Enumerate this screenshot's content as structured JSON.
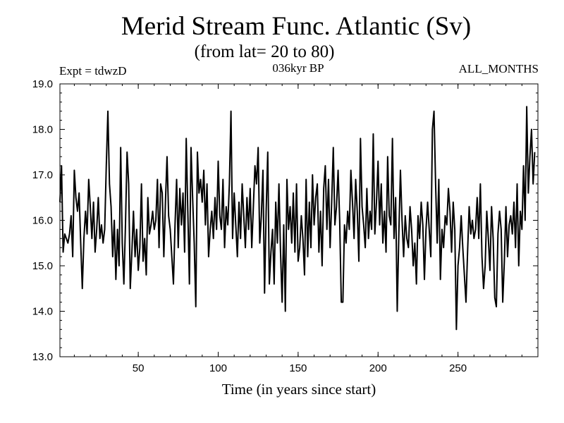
{
  "chart_data": {
    "type": "line",
    "title": "Merid Stream Func. Atlantic (Sv)",
    "subtitle": "(from lat= 20 to 80)",
    "period_label": "036kyr BP",
    "experiment_label": "Expt = tdwzD",
    "months_label": "ALL_MONTHS",
    "xlabel": "Time (in years since start)",
    "ylabel": "",
    "xlim": [
      1,
      300
    ],
    "ylim": [
      13.0,
      19.0
    ],
    "x_ticks": [
      50,
      100,
      150,
      200,
      250
    ],
    "y_ticks": [
      13.0,
      14.0,
      15.0,
      16.0,
      17.0,
      18.0,
      19.0
    ],
    "grid": false,
    "x_start": 1,
    "x_step": 1,
    "series": [
      {
        "values": [
          16.4,
          17.2,
          15.3,
          15.7,
          15.6,
          15.5,
          15.7,
          16.1,
          15.2,
          17.1,
          16.5,
          16.2,
          16.6,
          15.5,
          14.5,
          15.6,
          16.2,
          15.7,
          16.9,
          16.3,
          15.6,
          16.4,
          15.3,
          15.8,
          16.5,
          15.6,
          15.9,
          15.5,
          15.8,
          17.2,
          18.4,
          16.8,
          16.3,
          15.2,
          16.0,
          14.7,
          15.8,
          15.0,
          17.6,
          15.5,
          14.6,
          15.9,
          17.5,
          16.8,
          14.5,
          15.3,
          16.2,
          15.2,
          15.8,
          14.9,
          15.4,
          16.8,
          15.1,
          15.6,
          14.8,
          16.5,
          15.7,
          15.9,
          16.2,
          15.8,
          16.0,
          16.9,
          15.4,
          16.8,
          16.6,
          15.2,
          16.4,
          17.4,
          16.1,
          15.8,
          15.2,
          14.6,
          15.9,
          16.9,
          15.4,
          16.7,
          15.9,
          16.6,
          15.3,
          17.8,
          16.2,
          14.6,
          17.6,
          16.5,
          15.5,
          14.1,
          17.5,
          16.6,
          16.9,
          16.4,
          17.1,
          15.9,
          16.8,
          15.2,
          15.8,
          16.2,
          15.6,
          16.5,
          15.8,
          17.3,
          16.1,
          15.8,
          16.9,
          15.4,
          16.3,
          15.9,
          16.8,
          18.4,
          15.6,
          16.6,
          15.9,
          15.2,
          16.4,
          15.6,
          16.8,
          16.1,
          15.4,
          16.5,
          15.8,
          16.7,
          15.4,
          16.3,
          17.2,
          16.8,
          17.6,
          15.5,
          16.1,
          17.1,
          14.4,
          16.2,
          17.5,
          14.6,
          15.3,
          15.8,
          14.6,
          16.4,
          15.5,
          16.8,
          15.3,
          14.2,
          15.9,
          14.0,
          16.9,
          15.8,
          16.3,
          15.5,
          16.6,
          15.3,
          16.8,
          15.1,
          15.4,
          16.1,
          15.6,
          14.8,
          16.9,
          15.2,
          16.4,
          15.4,
          17.0,
          15.9,
          16.5,
          16.8,
          15.3,
          16.2,
          15.0,
          16.7,
          17.2,
          15.8,
          16.9,
          15.4,
          16.4,
          17.6,
          15.9,
          16.3,
          17.1,
          16.0,
          14.2,
          14.2,
          15.9,
          15.5,
          16.2,
          15.8,
          17.1,
          16.4,
          15.6,
          16.9,
          16.2,
          15.1,
          17.8,
          16.3,
          15.9,
          15.4,
          16.7,
          15.6,
          16.2,
          15.8,
          17.9,
          15.7,
          16.4,
          17.3,
          15.9,
          16.8,
          15.5,
          16.2,
          15.3,
          17.4,
          16.1,
          15.9,
          17.8,
          15.6,
          16.5,
          14.0,
          15.7,
          17.1,
          16.0,
          15.2,
          16.1,
          15.6,
          15.4,
          16.3,
          15.8,
          15.0,
          15.5,
          14.6,
          16.1,
          15.6,
          16.4,
          15.9,
          14.7,
          15.8,
          16.4,
          15.8,
          15.2,
          18.0,
          18.4,
          16.8,
          15.5,
          16.9,
          14.7,
          15.8,
          15.4,
          16.1,
          15.9,
          16.7,
          16.2,
          15.3,
          16.4,
          15.8,
          13.6,
          15.0,
          15.4,
          16.1,
          15.4,
          14.8,
          14.2,
          15.3,
          16.3,
          15.7,
          16.0,
          15.6,
          15.8,
          16.5,
          15.6,
          16.8,
          15.2,
          14.5,
          15.0,
          16.2,
          15.6,
          14.9,
          16.3,
          15.6,
          14.3,
          14.1,
          15.7,
          16.2,
          15.8,
          14.2,
          15.1,
          16.3,
          15.2,
          15.9,
          16.1,
          15.7,
          16.4,
          15.4,
          16.8,
          15.0,
          16.2,
          15.8,
          17.2,
          16.0,
          18.5,
          16.6,
          17.4,
          18.0,
          16.8,
          17.5
        ]
      }
    ]
  }
}
